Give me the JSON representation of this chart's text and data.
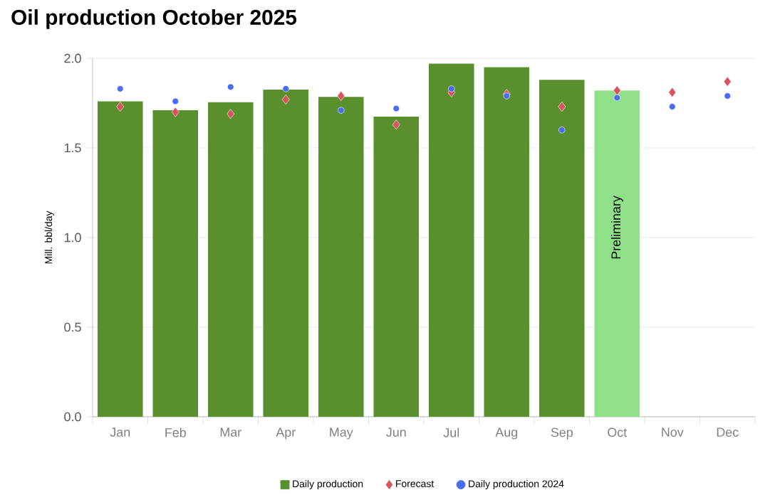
{
  "chart_data": {
    "type": "bar",
    "title": "Oil production October 2025",
    "ylabel": "Mill. bbl/day",
    "categories": [
      "Jan",
      "Feb",
      "Mar",
      "Apr",
      "May",
      "Jun",
      "Jul",
      "Aug",
      "Sep",
      "Oct",
      "Nov",
      "Dec"
    ],
    "series": [
      {
        "name": "Daily production",
        "color": "#5a8f2e",
        "colors": [
          "#5a8f2e",
          "#5a8f2e",
          "#5a8f2e",
          "#5a8f2e",
          "#5a8f2e",
          "#5a8f2e",
          "#5a8f2e",
          "#5a8f2e",
          "#5a8f2e",
          "#90e08a",
          null,
          null
        ],
        "values": [
          1.76,
          1.71,
          1.755,
          1.825,
          1.785,
          1.675,
          1.97,
          1.95,
          1.88,
          1.82,
          null,
          null
        ]
      },
      {
        "name": "Forecast",
        "type": "scatter",
        "marker": "diamond",
        "color": "#d9535f",
        "values": [
          1.73,
          1.7,
          1.69,
          1.77,
          1.79,
          1.63,
          1.81,
          1.8,
          1.73,
          1.82,
          1.81,
          1.87
        ]
      },
      {
        "name": "Daily production 2024",
        "type": "scatter",
        "marker": "circle",
        "color": "#4a6cf0",
        "values": [
          1.83,
          1.76,
          1.84,
          1.83,
          1.71,
          1.72,
          1.83,
          1.79,
          1.6,
          1.78,
          1.73,
          1.79
        ]
      }
    ],
    "annotations": [
      "Preliminary"
    ],
    "ylim": [
      0,
      2.0
    ],
    "yticks": [
      {
        "value": 0,
        "label": "0.0"
      },
      {
        "value": 0.5,
        "label": "0.5"
      },
      {
        "value": 1.0,
        "label": "1.0"
      },
      {
        "value": 1.5,
        "label": "1.5"
      },
      {
        "value": 2.0,
        "label": "2.0"
      }
    ],
    "grid": "y",
    "legend": "bottom"
  }
}
